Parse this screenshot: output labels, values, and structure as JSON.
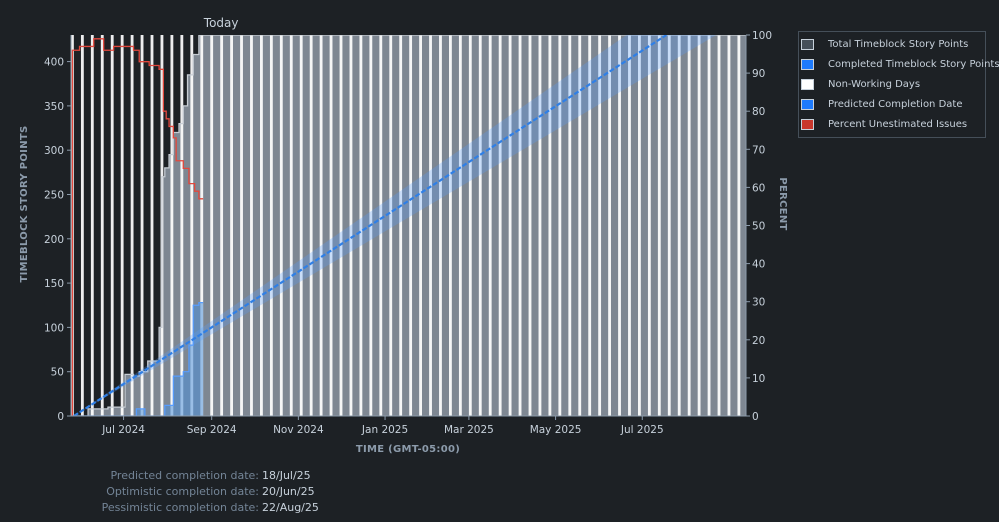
{
  "chart_data": {
    "type": "line",
    "today_label": "Today",
    "today_date": "2024-08-26",
    "x_range": [
      "2024-05-25",
      "2025-09-12"
    ],
    "x_tick_labels": [
      {
        "date": "2024-07-01",
        "label": "Jul 2024"
      },
      {
        "date": "2024-09-01",
        "label": "Sep 2024"
      },
      {
        "date": "2024-11-01",
        "label": "Nov 2024"
      },
      {
        "date": "2025-01-01",
        "label": "Jan 2025"
      },
      {
        "date": "2025-03-01",
        "label": "Mar 2025"
      },
      {
        "date": "2025-05-01",
        "label": "May 2025"
      },
      {
        "date": "2025-07-01",
        "label": "Jul 2025"
      }
    ],
    "xlabel": "TIME (GMT-05:00)",
    "ylabel_left": "TIMEBLOCK STORY POINTS",
    "ylabel_right": "PERCENT",
    "ylim_left": [
      0,
      430
    ],
    "yticks_left": [
      0,
      50,
      100,
      150,
      200,
      250,
      300,
      350,
      400
    ],
    "ylim_right": [
      0,
      100
    ],
    "yticks_right": [
      0,
      10,
      20,
      30,
      40,
      50,
      60,
      70,
      80,
      90,
      100
    ],
    "series": [
      {
        "name": "Total Timeblock Story Points",
        "color": "#8590a2",
        "points": [
          [
            "2024-05-27",
            0
          ],
          [
            "2024-06-06",
            0
          ],
          [
            "2024-06-06",
            8
          ],
          [
            "2024-06-20",
            8
          ],
          [
            "2024-06-20",
            10
          ],
          [
            "2024-07-02",
            10
          ],
          [
            "2024-07-02",
            47
          ],
          [
            "2024-07-08",
            47
          ],
          [
            "2024-07-08",
            45
          ],
          [
            "2024-07-12",
            45
          ],
          [
            "2024-07-12",
            50
          ],
          [
            "2024-07-18",
            50
          ],
          [
            "2024-07-18",
            62
          ],
          [
            "2024-07-26",
            62
          ],
          [
            "2024-07-26",
            100
          ],
          [
            "2024-07-28",
            100
          ],
          [
            "2024-07-28",
            270
          ],
          [
            "2024-07-30",
            270
          ],
          [
            "2024-07-30",
            280
          ],
          [
            "2024-08-02",
            280
          ],
          [
            "2024-08-02",
            295
          ],
          [
            "2024-08-05",
            295
          ],
          [
            "2024-08-05",
            320
          ],
          [
            "2024-08-09",
            320
          ],
          [
            "2024-08-09",
            330
          ],
          [
            "2024-08-12",
            330
          ],
          [
            "2024-08-12",
            350
          ],
          [
            "2024-08-15",
            350
          ],
          [
            "2024-08-15",
            385
          ],
          [
            "2024-08-19",
            385
          ],
          [
            "2024-08-19",
            408
          ],
          [
            "2024-08-23",
            408
          ],
          [
            "2024-08-23",
            430
          ],
          [
            "2025-09-12",
            430
          ]
        ]
      },
      {
        "name": "Completed Timeblock Story Points",
        "color": "#579dff",
        "points": [
          [
            "2024-05-27",
            0
          ],
          [
            "2024-07-10",
            0
          ],
          [
            "2024-07-10",
            8
          ],
          [
            "2024-07-16",
            8
          ],
          [
            "2024-07-16",
            0
          ],
          [
            "2024-07-30",
            0
          ],
          [
            "2024-07-30",
            12
          ],
          [
            "2024-08-05",
            12
          ],
          [
            "2024-08-05",
            45
          ],
          [
            "2024-08-12",
            45
          ],
          [
            "2024-08-12",
            50
          ],
          [
            "2024-08-16",
            50
          ],
          [
            "2024-08-16",
            80
          ],
          [
            "2024-08-19",
            80
          ],
          [
            "2024-08-19",
            125
          ],
          [
            "2024-08-23",
            125
          ],
          [
            "2024-08-23",
            128
          ],
          [
            "2024-08-26",
            128
          ]
        ]
      },
      {
        "name": "Non-Working Days",
        "color": "#ffffff",
        "first_weekend_start": "2024-05-25",
        "period_days": 7,
        "duration_days": 2
      },
      {
        "name": "Predicted Completion Date",
        "color": "#579dff",
        "line": [
          [
            "2024-05-27",
            0
          ],
          [
            "2025-07-18",
            430
          ]
        ],
        "optimistic_end": "2025-06-20",
        "pessimistic_end": "2025-08-22"
      },
      {
        "name": "Percent Unestimated Issues",
        "color": "#e2483d",
        "axis": "right",
        "points": [
          [
            "2024-05-25",
            0
          ],
          [
            "2024-05-26",
            0
          ],
          [
            "2024-05-26",
            96
          ],
          [
            "2024-05-31",
            96
          ],
          [
            "2024-05-31",
            97
          ],
          [
            "2024-06-10",
            97
          ],
          [
            "2024-06-10",
            99
          ],
          [
            "2024-06-17",
            99
          ],
          [
            "2024-06-17",
            96
          ],
          [
            "2024-06-24",
            96
          ],
          [
            "2024-06-24",
            97
          ],
          [
            "2024-07-08",
            97
          ],
          [
            "2024-07-08",
            96
          ],
          [
            "2024-07-12",
            96
          ],
          [
            "2024-07-12",
            93
          ],
          [
            "2024-07-19",
            93
          ],
          [
            "2024-07-19",
            92
          ],
          [
            "2024-07-26",
            92
          ],
          [
            "2024-07-26",
            91
          ],
          [
            "2024-07-29",
            91
          ],
          [
            "2024-07-29",
            80
          ],
          [
            "2024-07-31",
            80
          ],
          [
            "2024-07-31",
            78
          ],
          [
            "2024-08-02",
            78
          ],
          [
            "2024-08-02",
            76
          ],
          [
            "2024-08-05",
            76
          ],
          [
            "2024-08-05",
            73
          ],
          [
            "2024-08-07",
            73
          ],
          [
            "2024-08-07",
            67
          ],
          [
            "2024-08-12",
            67
          ],
          [
            "2024-08-12",
            65
          ],
          [
            "2024-08-16",
            65
          ],
          [
            "2024-08-16",
            61
          ],
          [
            "2024-08-20",
            61
          ],
          [
            "2024-08-20",
            59
          ],
          [
            "2024-08-23",
            59
          ],
          [
            "2024-08-23",
            57
          ],
          [
            "2024-08-26",
            57
          ]
        ]
      }
    ]
  },
  "legend": [
    {
      "label": "Total Timeblock Story Points",
      "fill": "#454f59",
      "border": "#c7d1db"
    },
    {
      "label": "Completed Timeblock Story Points",
      "fill": "#1d7afc",
      "border": "#c7d1db"
    },
    {
      "label": "Non-Working Days",
      "fill": "#ffffff",
      "border": "#c7d1db"
    },
    {
      "label": "Predicted Completion Date",
      "fill": "#1d7afc",
      "border": "#c7d1db"
    },
    {
      "label": "Percent Unestimated Issues",
      "fill": "#c9372c",
      "border": "#c7d1db"
    }
  ],
  "completion": {
    "predicted_label": "Predicted completion date:",
    "predicted_value": "18/Jul/25",
    "optimistic_label": "Optimistic completion date:",
    "optimistic_value": "20/Jun/25",
    "pessimistic_label": "Pessimistic completion date:",
    "pessimistic_value": "22/Aug/25"
  }
}
